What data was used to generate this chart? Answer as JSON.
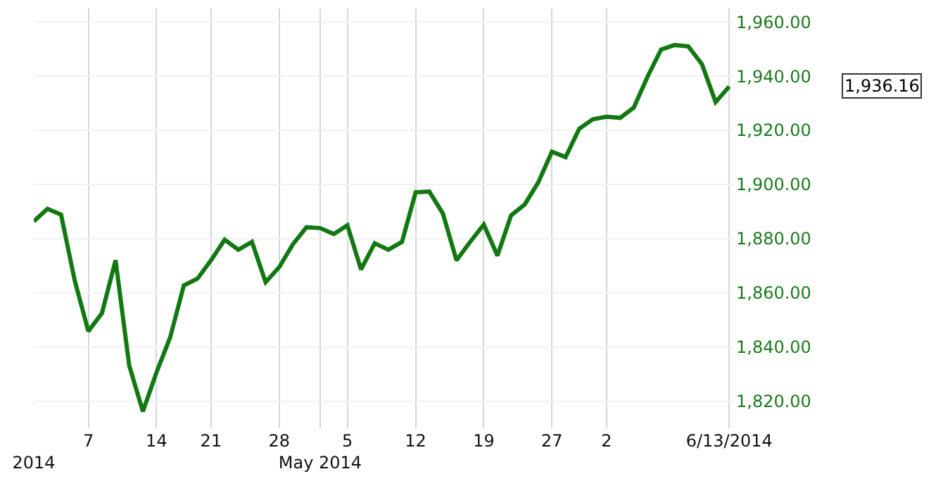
{
  "chart_data": {
    "type": "line",
    "categories": [
      "\n2014",
      null,
      null,
      null,
      "7",
      null,
      null,
      null,
      null,
      "14",
      null,
      null,
      null,
      "21",
      null,
      null,
      null,
      null,
      "28",
      null,
      null,
      "\nMay 2014",
      null,
      "5",
      null,
      null,
      null,
      null,
      "12",
      null,
      null,
      null,
      null,
      "19",
      null,
      null,
      null,
      null,
      "27",
      null,
      null,
      null,
      "2",
      null,
      null,
      null,
      null,
      null,
      null,
      null,
      null,
      "6/13/2014"
    ],
    "series": [
      {
        "color": "#127812",
        "values": [
          1886.4,
          1891.0,
          1888.9,
          1864.6,
          1845.8,
          1852.5,
          1872.0,
          1833.1,
          1816.2,
          1830.6,
          1843.5,
          1862.7,
          1865.2,
          1872.0,
          1879.6,
          1875.9,
          1878.8,
          1863.9,
          1869.5,
          1877.9,
          1884.2,
          1883.9,
          1881.7,
          1884.9,
          1868.6,
          1878.3,
          1875.9,
          1878.8,
          1897.1,
          1897.4,
          1889.3,
          1872.0,
          1878.8,
          1885.2,
          1873.7,
          1888.6,
          1892.6,
          1900.8,
          1912.1,
          1910.1,
          1920.6,
          1924.1,
          1925.0,
          1924.6,
          1928.4,
          1939.7,
          1949.8,
          1951.5,
          1951.0,
          1944.4,
          1930.4,
          1936.16
        ]
      }
    ],
    "ylim": [
      1810,
      1965
    ],
    "yticks": [
      {
        "value": 1820,
        "label": "1,820.00"
      },
      {
        "value": 1840,
        "label": "1,840.00"
      },
      {
        "value": 1860,
        "label": "1,860.00"
      },
      {
        "value": 1880,
        "label": "1,880.00"
      },
      {
        "value": 1900,
        "label": "1,900.00"
      },
      {
        "value": 1920,
        "label": "1,920.00"
      },
      {
        "value": 1940,
        "label": "1,940.00"
      },
      {
        "value": 1960,
        "label": "1,960.00"
      }
    ],
    "annotations": [
      "1,936.16"
    ],
    "grid": true,
    "marker": "none",
    "line_style": "solid"
  }
}
